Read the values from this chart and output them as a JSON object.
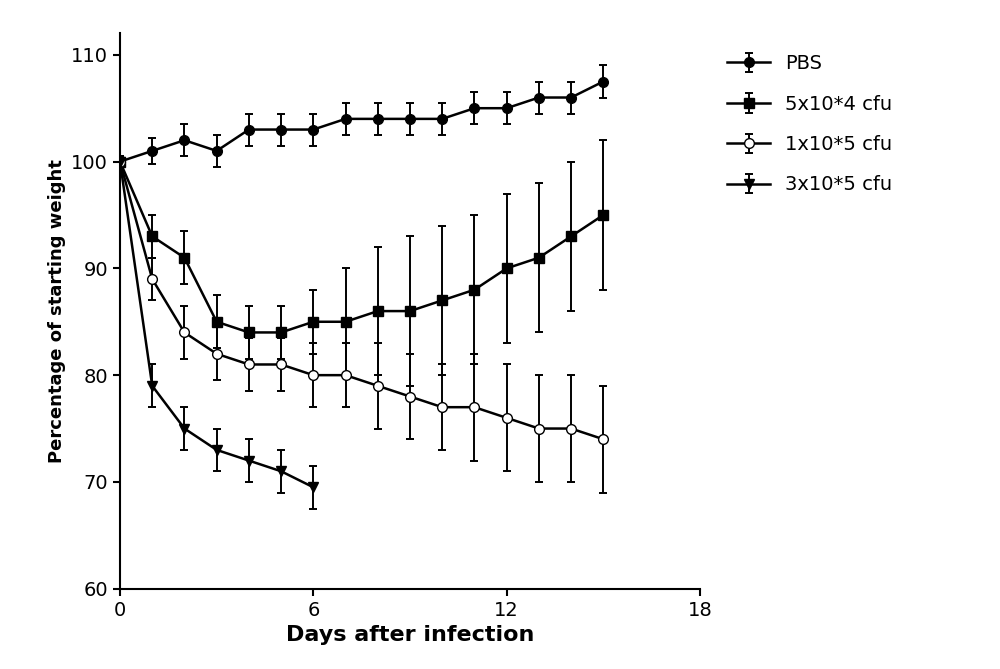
{
  "title": "",
  "xlabel": "Days after infection",
  "ylabel": "Percentage of starting weight",
  "xlim": [
    0,
    18
  ],
  "ylim": [
    60,
    112
  ],
  "yticks": [
    60,
    70,
    80,
    90,
    100,
    110
  ],
  "xticks": [
    0,
    6,
    12,
    18
  ],
  "background_color": "#ffffff",
  "series": [
    {
      "label": "PBS",
      "marker": "o",
      "fillstyle": "full",
      "color": "#000000",
      "x": [
        0,
        1,
        2,
        3,
        4,
        5,
        6,
        7,
        8,
        9,
        10,
        11,
        12,
        13,
        14,
        15
      ],
      "y": [
        100,
        101,
        102,
        101,
        103,
        103,
        103,
        104,
        104,
        104,
        104,
        105,
        105,
        106,
        106,
        107.5
      ],
      "yerr": [
        0.5,
        1.2,
        1.5,
        1.5,
        1.5,
        1.5,
        1.5,
        1.5,
        1.5,
        1.5,
        1.5,
        1.5,
        1.5,
        1.5,
        1.5,
        1.5
      ]
    },
    {
      "label": "5x10*4 cfu",
      "marker": "s",
      "fillstyle": "full",
      "color": "#000000",
      "x": [
        0,
        1,
        2,
        3,
        4,
        5,
        6,
        7,
        8,
        9,
        10,
        11,
        12,
        13,
        14,
        15
      ],
      "y": [
        100,
        93,
        91,
        85,
        84,
        84,
        85,
        85,
        86,
        86,
        87,
        88,
        90,
        91,
        93,
        95
      ],
      "yerr": [
        0.5,
        2,
        2.5,
        2.5,
        2.5,
        2.5,
        3,
        5,
        6,
        7,
        7,
        7,
        7,
        7,
        7,
        7
      ]
    },
    {
      "label": "1x10*5 cfu",
      "marker": "o",
      "fillstyle": "none",
      "color": "#000000",
      "x": [
        0,
        1,
        2,
        3,
        4,
        5,
        6,
        7,
        8,
        9,
        10,
        11,
        12,
        13,
        14,
        15
      ],
      "y": [
        100,
        89,
        84,
        82,
        81,
        81,
        80,
        80,
        79,
        78,
        77,
        77,
        76,
        75,
        75,
        74
      ],
      "yerr": [
        0.5,
        2,
        2.5,
        2.5,
        2.5,
        2.5,
        3,
        3,
        4,
        4,
        4,
        5,
        5,
        5,
        5,
        5
      ]
    },
    {
      "label": "3x10*5 cfu",
      "marker": "v",
      "fillstyle": "full",
      "color": "#000000",
      "x": [
        0,
        1,
        2,
        3,
        4,
        5,
        6
      ],
      "y": [
        100,
        79,
        75,
        73,
        72,
        71,
        69.5
      ],
      "yerr": [
        0.5,
        2,
        2,
        2,
        2,
        2,
        2
      ]
    }
  ],
  "linewidth": 1.8,
  "markersize": 7,
  "capsize": 3,
  "elinewidth": 1.4,
  "legend_fontsize": 14,
  "xlabel_fontsize": 16,
  "ylabel_fontsize": 13,
  "tick_labelsize": 14
}
